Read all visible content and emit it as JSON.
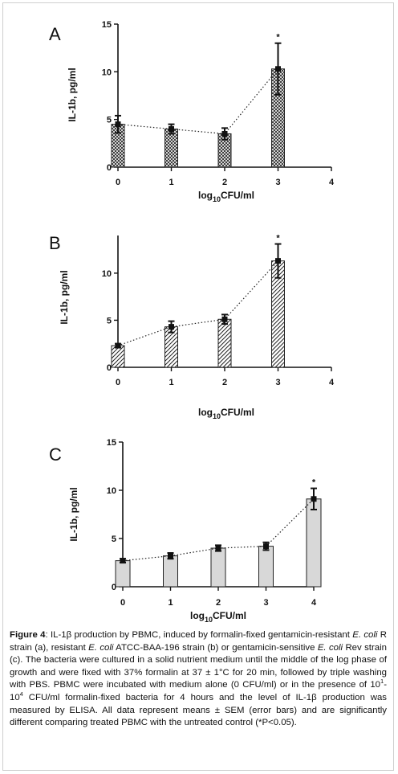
{
  "chart_data": [
    {
      "type": "bar",
      "panel_label": "A",
      "x": [
        0,
        1,
        2,
        3
      ],
      "values": [
        4.5,
        4.0,
        3.5,
        10.3
      ],
      "errors": [
        0.9,
        0.5,
        0.6,
        2.7
      ],
      "significant": [
        false,
        false,
        false,
        true
      ],
      "significance_marker": "*",
      "xlim": [
        0,
        4
      ],
      "ylim": [
        0,
        15
      ],
      "x_ticks": [
        "0",
        "1",
        "2",
        "3",
        "4"
      ],
      "y_ticks": [
        "0",
        "5",
        "10",
        "15"
      ],
      "ylabel": "IL-1b, pg/ml",
      "xlabel": {
        "prefix": "log",
        "sub": "10",
        "suffix": "CFU/ml"
      },
      "bar_fill": "crosshatch",
      "trend_line": "dotted"
    },
    {
      "type": "bar",
      "panel_label": "B",
      "x": [
        0,
        1,
        2,
        3
      ],
      "values": [
        2.3,
        4.3,
        5.1,
        11.3
      ],
      "errors": [
        0.2,
        0.6,
        0.5,
        1.8
      ],
      "significant": [
        false,
        false,
        false,
        true
      ],
      "significance_marker": "*",
      "xlim": [
        0,
        4
      ],
      "ylim": [
        0,
        14
      ],
      "x_ticks": [
        "0",
        "1",
        "2",
        "3",
        "4"
      ],
      "y_ticks": [
        "0",
        "5",
        "10"
      ],
      "ylabel": "IL-1b, pg/ml",
      "xlabel": {
        "prefix": "log",
        "sub": "10",
        "suffix": "CFU/ml"
      },
      "bar_fill": "diagonal-hatch",
      "trend_line": "dotted"
    },
    {
      "type": "bar",
      "panel_label": "C",
      "x": [
        0,
        1,
        2,
        3,
        4
      ],
      "values": [
        2.7,
        3.2,
        4.0,
        4.2,
        9.1
      ],
      "errors": [
        0.2,
        0.3,
        0.3,
        0.4,
        1.1
      ],
      "significant": [
        false,
        false,
        false,
        false,
        true
      ],
      "significance_marker": "*",
      "xlim": [
        0,
        4
      ],
      "ylim": [
        0,
        15
      ],
      "x_ticks": [
        "0",
        "1",
        "2",
        "3",
        "4"
      ],
      "y_ticks": [
        "0",
        "5",
        "10",
        "15"
      ],
      "ylabel": "IL-1b, pg/ml",
      "xlabel": {
        "prefix": "log",
        "sub": "10",
        "suffix": "CFU/ml"
      },
      "bar_fill": "solid-light-grey",
      "bar_color": "#d8d8d8",
      "trend_line": "dotted"
    }
  ],
  "caption": {
    "label": "Figure 4",
    "t1": ": IL-1β production by PBMC, induced by formalin-fixed gentamicin-resistant ",
    "i1": "E. coli",
    "t2": " R strain (a), resistant  ",
    "i2": "E. coli",
    "t3": " ATCC-BAA-196 strain (b) or gentamicin-sensitive ",
    "i3": "E. coli",
    "t4": " Rev strain (c).  The bacteria were cultured in a solid nutrient medium until the middle of the log phase of growth and were fixed with 37% formalin at 37 ± 1°C for 20 min, followed by triple washing with PBS. PBMC were incubated with medium alone (0 CFU/ml) or in the presence of 10",
    "sup1": "1",
    "t5": "-10",
    "sup2": "4",
    "t6": " CFU/ml formalin-fixed bacteria for 4 hours and the level of IL-1β production was measured by ELISA. All data represent means ± SEM (error bars) and are significantly different comparing treated PBMC with the untreated control (*P<0.05)."
  }
}
